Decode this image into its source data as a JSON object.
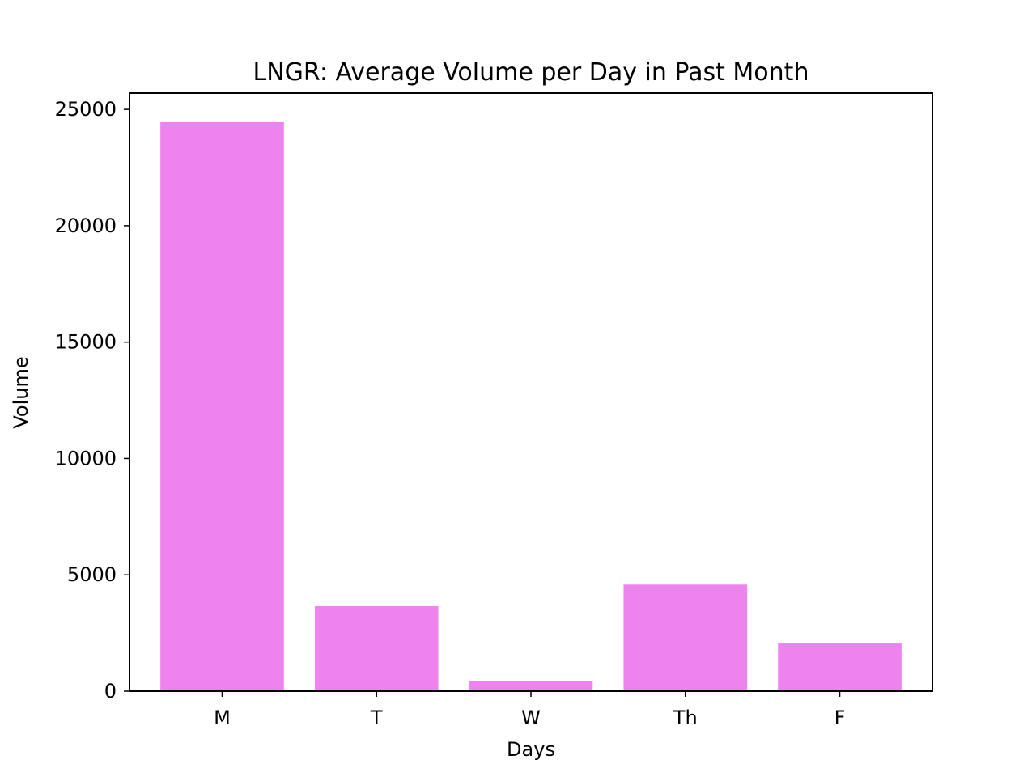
{
  "chart_data": {
    "type": "bar",
    "title": "LNGR: Average Volume per Day in Past Month",
    "xlabel": "Days",
    "ylabel": "Volume",
    "categories": [
      "M",
      "T",
      "W",
      "Th",
      "F"
    ],
    "values": [
      24450,
      3650,
      450,
      4580,
      2050
    ],
    "yticks": [
      0,
      5000,
      10000,
      15000,
      20000,
      25000
    ],
    "ylim": [
      0,
      25700
    ],
    "bar_color": "#ee82ee",
    "grid": false,
    "legend": false
  }
}
